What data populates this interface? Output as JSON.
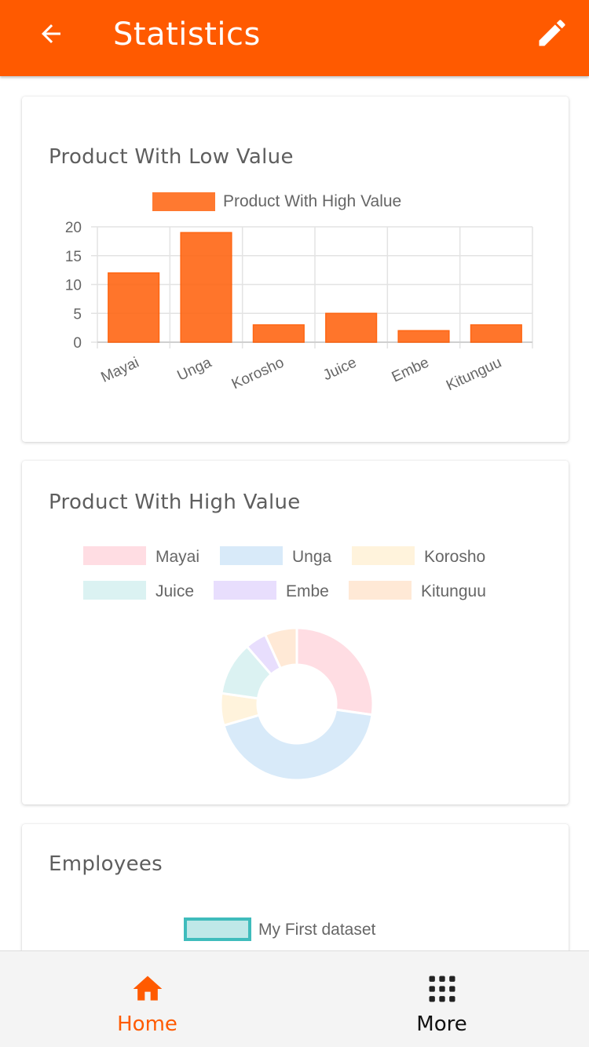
{
  "header": {
    "title": "Statistics",
    "back_icon": "arrow-left-icon",
    "edit_icon": "pencil-icon",
    "color": "#ff5a00"
  },
  "cards": {
    "low_value": {
      "title": "Product With Low Value"
    },
    "high_value": {
      "title": "Product With High Value"
    },
    "employees": {
      "title": "Employees"
    }
  },
  "chart_data": [
    {
      "type": "bar",
      "legend": [
        "Product With High Value"
      ],
      "categories": [
        "Mayai",
        "Unga",
        "Korosho",
        "Juice",
        "Embe",
        "Kitunguu"
      ],
      "series": [
        {
          "name": "Product With High Value",
          "values": [
            12,
            19,
            3,
            5,
            2,
            3
          ],
          "color": "#ff6a1a"
        }
      ],
      "ylim": [
        0,
        20
      ],
      "yticks": [
        0,
        5,
        10,
        15,
        20
      ],
      "grid": true,
      "legend_position": "top"
    },
    {
      "type": "pie",
      "donut": true,
      "categories": [
        "Mayai",
        "Unga",
        "Korosho",
        "Juice",
        "Embe",
        "Kitunguu"
      ],
      "values": [
        12,
        19,
        3,
        5,
        2,
        3
      ],
      "colors": [
        "#ffdde3",
        "#d8eaf9",
        "#fff3dc",
        "#dbf2f2",
        "#e8defd",
        "#ffe9d6"
      ],
      "legend_position": "top"
    },
    {
      "type": "line",
      "legend": [
        "My First dataset"
      ],
      "legend_color": "#3fbcbc",
      "legend_fill": "#bfe8e8",
      "legend_position": "top"
    }
  ],
  "bottom_nav": {
    "items": [
      {
        "label": "Home",
        "icon": "home-icon",
        "active": true
      },
      {
        "label": "More",
        "icon": "grid-icon",
        "active": false
      }
    ]
  }
}
